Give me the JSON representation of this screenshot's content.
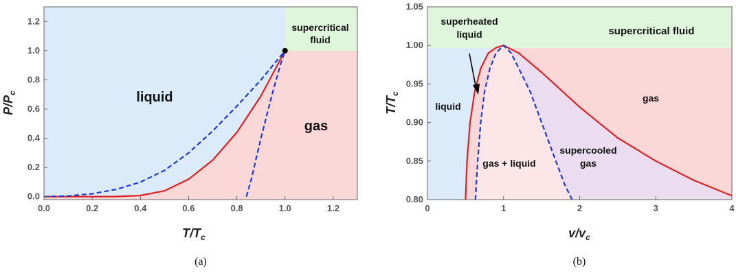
{
  "chart_data": [
    {
      "panel": "a",
      "type": "line",
      "caption": "(a)",
      "xlabel": "T/T_c",
      "ylabel": "P/P_c",
      "xlim": [
        0,
        1.3
      ],
      "ylim": [
        -0.02,
        1.3
      ],
      "xticks": [
        "0.0",
        "0.2",
        "0.4",
        "0.6",
        "0.8",
        "1.0",
        "1.2"
      ],
      "yticks": [
        "0.0",
        "0.2",
        "0.4",
        "0.6",
        "0.8",
        "1.0",
        "1.2"
      ],
      "regions": [
        {
          "label": "liquid",
          "color": "#dcebf9"
        },
        {
          "label": "gas",
          "color": "#fbd8d8"
        },
        {
          "label": "supercritical fluid",
          "color": "#dff5dc"
        }
      ],
      "critical_point": {
        "x": 1.0,
        "y": 1.0
      },
      "series": [
        {
          "color": "#e02020",
          "style": "solid",
          "x": [
            0.0,
            0.2,
            0.3,
            0.4,
            0.5,
            0.6,
            0.7,
            0.8,
            0.9,
            1.0
          ],
          "y": [
            0.0,
            0.0,
            0.001,
            0.008,
            0.04,
            0.12,
            0.25,
            0.44,
            0.69,
            1.0
          ]
        },
        {
          "color": "#1a3ad6",
          "style": "dashed",
          "x": [
            0.0,
            0.1,
            0.2,
            0.3,
            0.4,
            0.5,
            0.6,
            0.7,
            0.8,
            0.9,
            1.0
          ],
          "y": [
            0.0,
            0.005,
            0.02,
            0.05,
            0.1,
            0.18,
            0.3,
            0.45,
            0.62,
            0.8,
            1.0
          ]
        },
        {
          "color": "#1a3ad6",
          "style": "dashed",
          "x": [
            0.84,
            0.86,
            0.88,
            0.9,
            0.92,
            0.94,
            0.96,
            0.98,
            1.0
          ],
          "y": [
            0.0,
            0.12,
            0.26,
            0.4,
            0.53,
            0.66,
            0.78,
            0.9,
            1.0
          ]
        }
      ]
    },
    {
      "panel": "b",
      "type": "line",
      "caption": "(b)",
      "xlabel": "v/v_c",
      "ylabel": "T/T_c",
      "xlim": [
        0,
        4
      ],
      "ylim": [
        0.8,
        1.05
      ],
      "xticks": [
        "0",
        "1",
        "2",
        "3",
        "4"
      ],
      "yticks": [
        "0.80",
        "0.85",
        "0.90",
        "0.95",
        "1.00",
        "1.05"
      ],
      "regions": [
        {
          "label": "liquid",
          "color": "#dcebf9"
        },
        {
          "label": "superheated liquid",
          "color": "#fbe6ea"
        },
        {
          "label": "gas + liquid",
          "color": "#fde6e8"
        },
        {
          "label": "supercooled gas",
          "color": "#ecdcef"
        },
        {
          "label": "gas",
          "color": "#fbd8d8"
        },
        {
          "label": "supercritical fluid",
          "color": "#dff5dc"
        }
      ],
      "series": [
        {
          "color": "#e02020",
          "style": "solid",
          "x": [
            0.5,
            0.52,
            0.56,
            0.62,
            0.7,
            0.8,
            0.9,
            1.0,
            1.2,
            1.5,
            2.0,
            2.5,
            3.0,
            3.5,
            4.0
          ],
          "y": [
            0.8,
            0.85,
            0.9,
            0.94,
            0.97,
            0.99,
            0.997,
            1.0,
            0.99,
            0.965,
            0.92,
            0.88,
            0.85,
            0.825,
            0.805
          ]
        },
        {
          "color": "#1a3ad6",
          "style": "dashed",
          "x": [
            0.63,
            0.66,
            0.7,
            0.75,
            0.82,
            0.9,
            1.0,
            1.1,
            1.2,
            1.35,
            1.5,
            1.65,
            1.8,
            1.9
          ],
          "y": [
            0.8,
            0.85,
            0.9,
            0.94,
            0.97,
            0.99,
            1.0,
            0.99,
            0.97,
            0.94,
            0.9,
            0.86,
            0.82,
            0.8
          ]
        }
      ]
    }
  ]
}
